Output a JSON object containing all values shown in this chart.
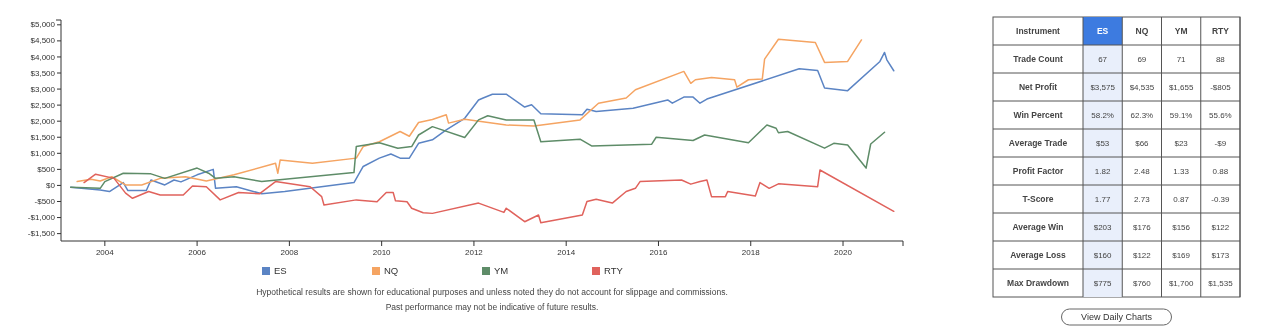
{
  "chart_data": [
    {
      "type": "line",
      "xlim": [
        2003.05,
        2021.3
      ],
      "xticks": [
        2004,
        2006,
        2008,
        2010,
        2012,
        2014,
        2016,
        2018,
        2020
      ],
      "ylim": [
        -1730,
        5150
      ],
      "yticks": [
        {
          "value": -1500,
          "label": "-$1,500"
        },
        {
          "value": -1000,
          "label": "-$1,000"
        },
        {
          "value": -500,
          "label": "-$500"
        },
        {
          "value": 0,
          "label": "$0"
        },
        {
          "value": 500,
          "label": "$500"
        },
        {
          "value": 1000,
          "label": "$1,000"
        },
        {
          "value": 1500,
          "label": "$1,500"
        },
        {
          "value": 2000,
          "label": "$2,000"
        },
        {
          "value": 2500,
          "label": "$2,500"
        },
        {
          "value": 3000,
          "label": "$3,000"
        },
        {
          "value": 3500,
          "label": "$3,500"
        },
        {
          "value": 4000,
          "label": "$4,000"
        },
        {
          "value": 4500,
          "label": "$4,500"
        },
        {
          "value": 5000,
          "label": "$5,000"
        }
      ],
      "grid": false,
      "legend": "bottom",
      "marker": "none",
      "line_style": "solid",
      "annotations": [
        "Hypothetical results are shown for educational purposes and unless noted they do not account for slippage and commissions.",
        "Past performance may not be indicative of future results."
      ],
      "series": [
        {
          "name": "ES",
          "color": "#5b84c4",
          "x": [
            2003.26,
            2003.9,
            2004.1,
            2004.4,
            2004.5,
            2004.9,
            2005.0,
            2005.3,
            2005.5,
            2005.65,
            2006.0,
            2006.35,
            2006.4,
            2006.85,
            2007.4,
            2007.9,
            2009.4,
            2009.6,
            2009.95,
            2010.2,
            2010.4,
            2010.6,
            2010.8,
            2011.1,
            2011.4,
            2011.8,
            2012.1,
            2012.2,
            2012.4,
            2012.7,
            2013.1,
            2013.25,
            2013.45,
            2014.35,
            2014.45,
            2014.65,
            2015.45,
            2016.2,
            2016.3,
            2016.55,
            2016.75,
            2016.9,
            2017.05,
            2019.05,
            2019.45,
            2019.6,
            2020.1,
            2020.8,
            2020.9,
            2020.95,
            2021.1
          ],
          "values": [
            -56,
            -140,
            -190,
            90,
            -160,
            -160,
            170,
            15,
            170,
            110,
            330,
            500,
            -90,
            -40,
            -260,
            -190,
            90,
            590,
            850,
            980,
            850,
            850,
            1310,
            1420,
            1730,
            2090,
            2660,
            2720,
            2840,
            2840,
            2440,
            2510,
            2230,
            2200,
            2370,
            2300,
            2400,
            2660,
            2560,
            2750,
            2750,
            2560,
            2690,
            3630,
            3580,
            3030,
            2950,
            3860,
            4140,
            3910,
            3570
          ]
        },
        {
          "name": "NQ",
          "color": "#f5a462",
          "x": [
            2003.4,
            2003.7,
            2003.9,
            2004.15,
            2004.45,
            2004.8,
            2005.2,
            2005.75,
            2006.2,
            2006.8,
            2007.7,
            2007.75,
            2007.8,
            2008.5,
            2009.45,
            2009.6,
            2009.95,
            2010.4,
            2010.6,
            2010.8,
            2011.1,
            2011.4,
            2011.45,
            2011.8,
            2012.7,
            2013.3,
            2014.3,
            2014.7,
            2015.3,
            2015.5,
            2016.55,
            2016.7,
            2016.8,
            2017.15,
            2017.65,
            2017.7,
            2017.95,
            2018.25,
            2018.3,
            2018.6,
            2019.4,
            2019.6,
            2020.1,
            2020.4
          ],
          "values": [
            120,
            190,
            140,
            270,
            15,
            15,
            220,
            270,
            140,
            330,
            690,
            380,
            790,
            690,
            850,
            1210,
            1360,
            1680,
            1530,
            1960,
            2050,
            2200,
            1940,
            2060,
            1880,
            1850,
            2040,
            2560,
            2720,
            2980,
            3550,
            3180,
            3290,
            3360,
            3290,
            3060,
            3290,
            3310,
            3930,
            4550,
            4450,
            3830,
            3860,
            4530
          ]
        },
        {
          "name": "YM",
          "color": "#5e8c68",
          "x": [
            2003.26,
            2003.9,
            2004.0,
            2004.4,
            2005.0,
            2005.3,
            2006.0,
            2006.25,
            2006.4,
            2006.8,
            2007.4,
            2009.4,
            2009.45,
            2009.95,
            2010.35,
            2010.65,
            2010.8,
            2011.1,
            2011.8,
            2012.1,
            2012.3,
            2012.7,
            2013.3,
            2013.45,
            2014.3,
            2014.55,
            2015.85,
            2015.95,
            2016.75,
            2017.0,
            2017.95,
            2018.35,
            2018.55,
            2018.6,
            2018.8,
            2019.6,
            2019.8,
            2020.1,
            2020.5,
            2020.6,
            2020.9
          ],
          "values": [
            -56,
            -90,
            120,
            380,
            360,
            220,
            540,
            380,
            220,
            270,
            120,
            400,
            1210,
            1330,
            1160,
            1210,
            1570,
            1830,
            1490,
            2040,
            2170,
            2040,
            2040,
            1360,
            1440,
            1230,
            1280,
            1500,
            1400,
            1570,
            1330,
            1880,
            1780,
            1640,
            1680,
            1160,
            1310,
            1260,
            540,
            1290,
            1655
          ]
        },
        {
          "name": "RTY",
          "color": "#e0625c",
          "x": [
            2003.55,
            2003.8,
            2004.2,
            2004.45,
            2004.6,
            2004.95,
            2005.2,
            2005.7,
            2005.9,
            2006.2,
            2006.5,
            2006.9,
            2007.35,
            2007.7,
            2008.45,
            2008.7,
            2008.75,
            2009.45,
            2009.9,
            2010.1,
            2010.25,
            2010.3,
            2010.55,
            2010.65,
            2010.9,
            2011.1,
            2012.1,
            2012.65,
            2012.7,
            2013.1,
            2013.4,
            2013.45,
            2014.35,
            2014.45,
            2014.65,
            2015.0,
            2015.3,
            2015.5,
            2015.6,
            2016.5,
            2016.7,
            2016.9,
            2017.05,
            2017.15,
            2017.45,
            2017.5,
            2018.1,
            2018.2,
            2018.4,
            2018.6,
            2019.45,
            2019.5,
            2021.1
          ],
          "values": [
            90,
            350,
            220,
            -240,
            -400,
            -190,
            -300,
            -300,
            -20,
            -40,
            -450,
            -220,
            -260,
            120,
            -40,
            -350,
            -610,
            -450,
            -510,
            -220,
            -220,
            -480,
            -510,
            -710,
            -850,
            -870,
            -550,
            -840,
            -710,
            -1130,
            -920,
            -1160,
            -920,
            -500,
            -430,
            -550,
            -190,
            -90,
            120,
            170,
            40,
            120,
            170,
            -350,
            -350,
            -190,
            -330,
            90,
            -90,
            50,
            -40,
            480,
            -805
          ]
        }
      ]
    },
    {
      "type": "other",
      "ylabel": "Instrument",
      "categories": [
        "ES",
        "NQ",
        "YM",
        "RTY"
      ],
      "y_categories": [
        "Trade Count",
        "Net Profit",
        "Win Percent",
        "Average Trade",
        "Profit Factor",
        "T-Score",
        "Average Win",
        "Average Loss",
        "Max Drawdown"
      ],
      "cell_labels": [
        [
          "67",
          "69",
          "71",
          "88"
        ],
        [
          "$3,575",
          "$4,535",
          "$1,655",
          "-$805"
        ],
        [
          "58.2%",
          "62.3%",
          "59.1%",
          "55.6%"
        ],
        [
          "$53",
          "$66",
          "$23",
          "-$9"
        ],
        [
          "1.82",
          "2.48",
          "1.33",
          "0.88"
        ],
        [
          "1.77",
          "2.73",
          "0.87",
          "-0.39"
        ],
        [
          "$203",
          "$176",
          "$156",
          "$122"
        ],
        [
          "$160",
          "$122",
          "$169",
          "$173"
        ],
        [
          "$775",
          "$760",
          "$1,700",
          "$1,535"
        ]
      ],
      "annotations": [
        "View Daily Charts"
      ]
    }
  ]
}
